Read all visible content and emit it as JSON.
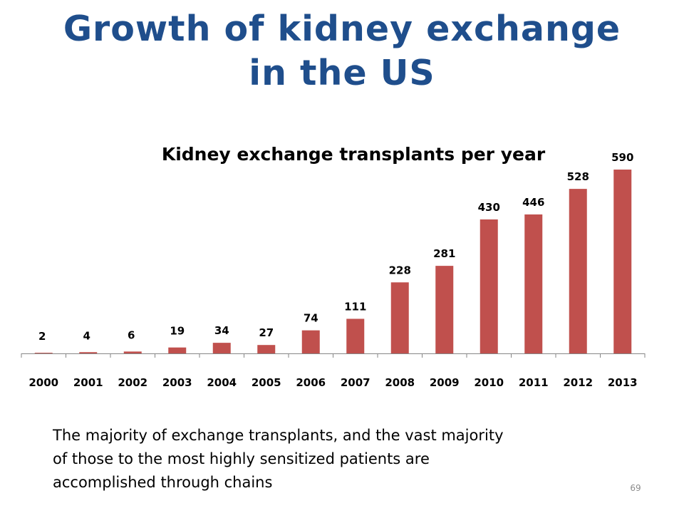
{
  "slide": {
    "title_line1": "Growth of kidney exchange",
    "title_line2": "in the US",
    "caption_line1": "The majority of exchange transplants, and the vast majority",
    "caption_line2": "of those to the most highly sensitized patients are",
    "caption_line3": "accomplished through chains",
    "page_number": "69",
    "title_color": "#1f4e8c"
  },
  "chart_data": {
    "type": "bar",
    "title": "Kidney exchange transplants per year",
    "xlabel": "",
    "ylabel": "",
    "categories": [
      "2000",
      "2001",
      "2002",
      "2003",
      "2004",
      "2005",
      "2006",
      "2007",
      "2008",
      "2009",
      "2010",
      "2011",
      "2012",
      "2013"
    ],
    "values": [
      2,
      4,
      6,
      19,
      34,
      27,
      74,
      111,
      228,
      281,
      430,
      446,
      528,
      590
    ],
    "data_labels": [
      "2",
      "4",
      "6",
      "19",
      "34",
      "27",
      "74",
      "111",
      "228",
      "281",
      "430",
      "446",
      "528",
      "590"
    ],
    "ylim": [
      0,
      600
    ],
    "grid": false,
    "legend": "none",
    "bar_color": "#c0504d",
    "axis_color": "#868686"
  }
}
